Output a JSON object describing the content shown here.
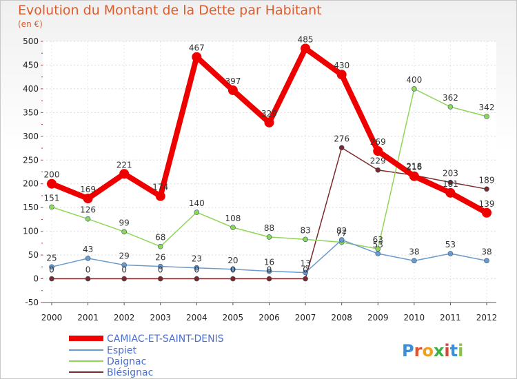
{
  "title": "Evolution du Montant de la Dette par Habitant",
  "subtitle": "(en €)",
  "logo": "Proxiti",
  "chart_data": {
    "type": "line",
    "title": "Evolution du Montant de la Dette par Habitant",
    "ylabel": "(en €)",
    "xlabel": "",
    "ylim": [
      -50,
      500
    ],
    "yticks": [
      -50,
      0,
      50,
      100,
      150,
      200,
      250,
      300,
      350,
      400,
      450,
      500
    ],
    "categories": [
      "2000",
      "2001",
      "2002",
      "2003",
      "2004",
      "2005",
      "2006",
      "2007",
      "2008",
      "2009",
      "2010",
      "2011",
      "2012"
    ],
    "series": [
      {
        "name": "CAMIAC-ET-SAINT-DENIS",
        "color": "#ee0000",
        "values": [
          200,
          169,
          221,
          174,
          467,
          397,
          329,
          485,
          430,
          269,
          216,
          181,
          139
        ]
      },
      {
        "name": "Espiet",
        "color": "#6b9bcd",
        "values": [
          25,
          43,
          29,
          26,
          23,
          20,
          16,
          13,
          82,
          53,
          38,
          53,
          38
        ]
      },
      {
        "name": "Daignac",
        "color": "#8fd656",
        "values": [
          151,
          126,
          99,
          68,
          140,
          108,
          88,
          83,
          77,
          63,
          400,
          362,
          342
        ]
      },
      {
        "name": "Blésignac",
        "color": "#7a2a2a",
        "values": [
          0,
          0,
          0,
          0,
          0,
          0,
          0,
          0,
          276,
          229,
          218,
          203,
          189
        ]
      }
    ]
  }
}
